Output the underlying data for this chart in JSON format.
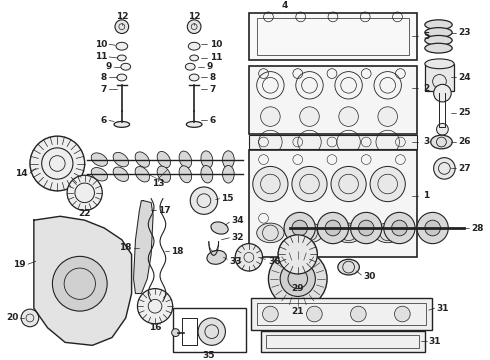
{
  "bg": "#ffffff",
  "lc": "#222222",
  "fs": 6.5,
  "fw": "bold",
  "fig_w": 4.9,
  "fig_h": 3.6,
  "dpi": 100
}
